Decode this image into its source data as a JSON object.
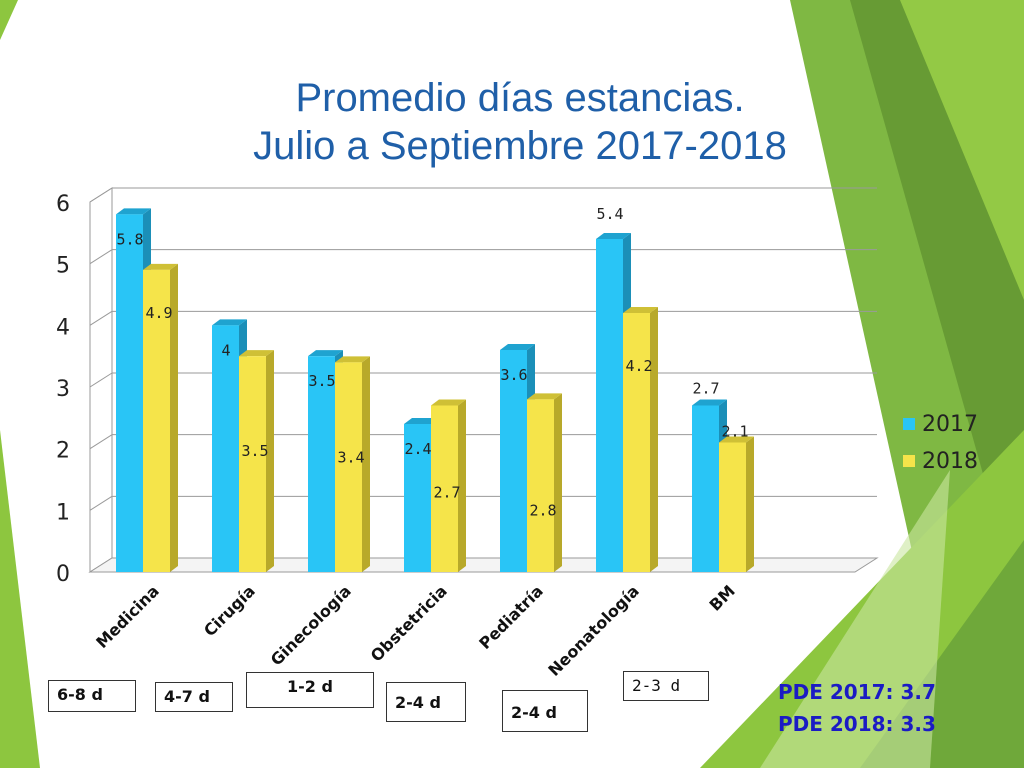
{
  "title": {
    "line1": "Promedio días estancias.",
    "line2": "Julio a Septiembre 2017-2018"
  },
  "colors": {
    "series_2017": "#29c5f6",
    "series_2018": "#f5e44a",
    "title": "#1f5fa8",
    "pde": "#1b1bc4",
    "accent_green": "#8dc63f"
  },
  "chart_data": {
    "type": "bar",
    "categories": [
      "Medicina",
      "Cirugía",
      "Ginecología",
      "Obstetricia",
      "Pediatría",
      "Neonatología",
      "BM"
    ],
    "series": [
      {
        "name": "2017",
        "values": [
          5.8,
          4,
          3.5,
          2.4,
          3.6,
          5.4,
          2.7
        ]
      },
      {
        "name": "2018",
        "values": [
          4.9,
          3.5,
          3.4,
          2.7,
          2.8,
          4.2,
          2.1
        ]
      }
    ],
    "data_labels": {
      "2017": [
        "5.8",
        "4",
        "3.5",
        "2.4",
        "3.6",
        "5.4",
        "2.7"
      ],
      "2018": [
        "4.9",
        "3.5",
        "3.4",
        "2.7",
        "2.8",
        "4.2",
        "2.1"
      ]
    },
    "yticks": [
      "0",
      "1",
      "2",
      "3",
      "4",
      "5",
      "6"
    ],
    "ylim": [
      0,
      6
    ],
    "grid": true,
    "legend": "right",
    "style": "3d"
  },
  "stay_ranges": [
    "6-8 d",
    "4-7 d",
    "1-2 d",
    "2-4 d",
    "2-4 d",
    "2-3 d"
  ],
  "pde": {
    "line1": "PDE 2017: 3.7",
    "line2": "PDE 2018: 3.3"
  }
}
